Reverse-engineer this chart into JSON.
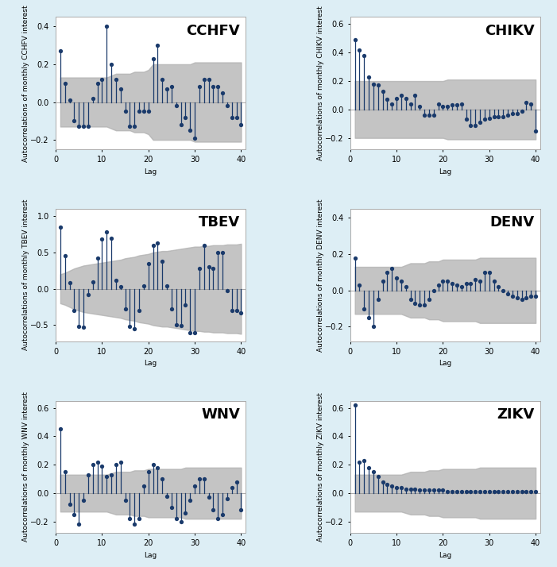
{
  "panels": [
    {
      "title": "CCHFV",
      "ylabel": "Autocorrelations of monthly CCHFV interest",
      "ylim": [
        -0.25,
        0.45
      ],
      "yticks": [
        -0.2,
        0.0,
        0.2,
        0.4
      ],
      "acf": [
        0.27,
        0.1,
        0.01,
        -0.1,
        -0.13,
        -0.13,
        -0.13,
        0.02,
        0.1,
        0.12,
        0.4,
        0.2,
        0.12,
        0.07,
        -0.05,
        -0.13,
        -0.13,
        -0.05,
        -0.05,
        -0.05,
        0.23,
        0.3,
        0.12,
        0.07,
        0.08,
        -0.02,
        -0.12,
        -0.08,
        -0.15,
        -0.19,
        0.08,
        0.12,
        0.12,
        0.08,
        0.08,
        0.05,
        -0.02,
        -0.08,
        -0.08,
        -0.12
      ],
      "ci_upper": [
        0.13,
        0.13,
        0.13,
        0.13,
        0.13,
        0.13,
        0.13,
        0.13,
        0.13,
        0.13,
        0.13,
        0.14,
        0.15,
        0.15,
        0.15,
        0.15,
        0.16,
        0.16,
        0.16,
        0.17,
        0.2,
        0.2,
        0.2,
        0.2,
        0.2,
        0.2,
        0.2,
        0.2,
        0.2,
        0.21,
        0.21,
        0.21,
        0.21,
        0.21,
        0.21,
        0.21,
        0.21,
        0.21,
        0.21,
        0.21
      ],
      "ci_lower": [
        -0.13,
        -0.13,
        -0.13,
        -0.13,
        -0.13,
        -0.13,
        -0.13,
        -0.13,
        -0.13,
        -0.13,
        -0.13,
        -0.14,
        -0.15,
        -0.15,
        -0.15,
        -0.15,
        -0.16,
        -0.16,
        -0.16,
        -0.17,
        -0.2,
        -0.2,
        -0.2,
        -0.2,
        -0.2,
        -0.2,
        -0.2,
        -0.2,
        -0.2,
        -0.21,
        -0.21,
        -0.21,
        -0.21,
        -0.21,
        -0.21,
        -0.21,
        -0.21,
        -0.21,
        -0.21,
        -0.21
      ]
    },
    {
      "title": "CHIKV",
      "ylabel": "Autocorrelations of monthly CHIKV interest",
      "ylim": [
        -0.28,
        0.65
      ],
      "yticks": [
        -0.2,
        0.0,
        0.2,
        0.4,
        0.6
      ],
      "acf": [
        0.49,
        0.42,
        0.38,
        0.23,
        0.18,
        0.17,
        0.13,
        0.07,
        0.04,
        0.08,
        0.1,
        0.08,
        0.04,
        0.1,
        0.02,
        -0.04,
        -0.04,
        -0.04,
        0.04,
        0.02,
        0.02,
        0.03,
        0.03,
        0.04,
        -0.07,
        -0.11,
        -0.11,
        -0.09,
        -0.07,
        -0.06,
        -0.05,
        -0.05,
        -0.05,
        -0.04,
        -0.03,
        -0.03,
        -0.01,
        0.05,
        0.04,
        -0.15
      ],
      "ci_upper": [
        0.2,
        0.2,
        0.2,
        0.2,
        0.2,
        0.2,
        0.2,
        0.2,
        0.2,
        0.2,
        0.2,
        0.2,
        0.2,
        0.2,
        0.2,
        0.2,
        0.2,
        0.2,
        0.2,
        0.2,
        0.21,
        0.21,
        0.21,
        0.21,
        0.21,
        0.21,
        0.21,
        0.21,
        0.21,
        0.21,
        0.21,
        0.21,
        0.21,
        0.21,
        0.21,
        0.21,
        0.21,
        0.21,
        0.21,
        0.21
      ],
      "ci_lower": [
        -0.2,
        -0.2,
        -0.2,
        -0.2,
        -0.2,
        -0.2,
        -0.2,
        -0.2,
        -0.2,
        -0.2,
        -0.2,
        -0.2,
        -0.2,
        -0.2,
        -0.2,
        -0.2,
        -0.2,
        -0.2,
        -0.2,
        -0.2,
        -0.21,
        -0.21,
        -0.21,
        -0.21,
        -0.21,
        -0.21,
        -0.21,
        -0.21,
        -0.21,
        -0.21,
        -0.21,
        -0.21,
        -0.21,
        -0.21,
        -0.21,
        -0.21,
        -0.21,
        -0.21,
        -0.21,
        -0.21
      ]
    },
    {
      "title": "TBEV",
      "ylabel": "Autocorrelations of monthly TBEV interest",
      "ylim": [
        -0.72,
        1.1
      ],
      "yticks": [
        -0.5,
        0.0,
        0.5,
        1.0
      ],
      "acf": [
        0.85,
        0.45,
        0.08,
        -0.3,
        -0.52,
        -0.53,
        -0.08,
        0.09,
        0.42,
        0.68,
        0.78,
        0.7,
        0.12,
        0.03,
        -0.28,
        -0.52,
        -0.55,
        -0.3,
        0.04,
        0.35,
        0.6,
        0.63,
        0.38,
        0.04,
        -0.28,
        -0.5,
        -0.51,
        -0.22,
        -0.6,
        -0.6,
        0.28,
        0.6,
        0.3,
        0.28,
        0.5,
        0.5,
        -0.03,
        -0.3,
        -0.3,
        -0.33
      ],
      "ci_upper": [
        0.2,
        0.22,
        0.25,
        0.28,
        0.3,
        0.32,
        0.33,
        0.34,
        0.35,
        0.36,
        0.37,
        0.38,
        0.39,
        0.4,
        0.42,
        0.43,
        0.44,
        0.46,
        0.47,
        0.48,
        0.5,
        0.51,
        0.52,
        0.52,
        0.53,
        0.54,
        0.55,
        0.56,
        0.57,
        0.58,
        0.58,
        0.59,
        0.59,
        0.6,
        0.6,
        0.6,
        0.61,
        0.61,
        0.61,
        0.62
      ],
      "ci_lower": [
        -0.2,
        -0.22,
        -0.25,
        -0.28,
        -0.3,
        -0.32,
        -0.33,
        -0.34,
        -0.35,
        -0.36,
        -0.37,
        -0.38,
        -0.39,
        -0.4,
        -0.42,
        -0.43,
        -0.44,
        -0.46,
        -0.47,
        -0.48,
        -0.5,
        -0.51,
        -0.52,
        -0.52,
        -0.53,
        -0.54,
        -0.55,
        -0.56,
        -0.57,
        -0.58,
        -0.58,
        -0.59,
        -0.59,
        -0.6,
        -0.6,
        -0.6,
        -0.61,
        -0.61,
        -0.61,
        -0.62
      ]
    },
    {
      "title": "DENV",
      "ylabel": "Autocorrelations of monthly DENV interest",
      "ylim": [
        -0.28,
        0.45
      ],
      "yticks": [
        -0.2,
        0.0,
        0.2,
        0.4
      ],
      "acf": [
        0.18,
        0.03,
        -0.1,
        -0.15,
        -0.2,
        -0.05,
        0.05,
        0.1,
        0.12,
        0.07,
        0.05,
        0.02,
        -0.05,
        -0.07,
        -0.08,
        -0.08,
        -0.05,
        0.0,
        0.03,
        0.05,
        0.05,
        0.04,
        0.03,
        0.02,
        0.04,
        0.04,
        0.06,
        0.05,
        0.1,
        0.1,
        0.05,
        0.02,
        0.0,
        -0.02,
        -0.03,
        -0.04,
        -0.05,
        -0.04,
        -0.03,
        -0.03
      ],
      "ci_upper": [
        0.13,
        0.13,
        0.13,
        0.13,
        0.13,
        0.13,
        0.13,
        0.13,
        0.13,
        0.13,
        0.13,
        0.14,
        0.15,
        0.15,
        0.15,
        0.15,
        0.16,
        0.16,
        0.16,
        0.17,
        0.17,
        0.17,
        0.17,
        0.17,
        0.17,
        0.17,
        0.17,
        0.18,
        0.18,
        0.18,
        0.18,
        0.18,
        0.18,
        0.18,
        0.18,
        0.18,
        0.18,
        0.18,
        0.18,
        0.18
      ],
      "ci_lower": [
        -0.13,
        -0.13,
        -0.13,
        -0.13,
        -0.13,
        -0.13,
        -0.13,
        -0.13,
        -0.13,
        -0.13,
        -0.13,
        -0.14,
        -0.15,
        -0.15,
        -0.15,
        -0.15,
        -0.16,
        -0.16,
        -0.16,
        -0.17,
        -0.17,
        -0.17,
        -0.17,
        -0.17,
        -0.17,
        -0.17,
        -0.17,
        -0.18,
        -0.18,
        -0.18,
        -0.18,
        -0.18,
        -0.18,
        -0.18,
        -0.18,
        -0.18,
        -0.18,
        -0.18,
        -0.18,
        -0.18
      ]
    },
    {
      "title": "WNV",
      "ylabel": "Autocorrelations of monthly WNV interest",
      "ylim": [
        -0.28,
        0.65
      ],
      "yticks": [
        -0.2,
        0.0,
        0.2,
        0.4,
        0.6
      ],
      "acf": [
        0.45,
        0.15,
        -0.08,
        -0.15,
        -0.22,
        -0.05,
        0.13,
        0.2,
        0.22,
        0.19,
        0.12,
        0.13,
        0.2,
        0.22,
        -0.05,
        -0.18,
        -0.22,
        -0.18,
        0.05,
        0.15,
        0.2,
        0.18,
        0.1,
        -0.02,
        -0.1,
        -0.18,
        -0.2,
        -0.14,
        -0.05,
        0.05,
        0.1,
        0.1,
        -0.03,
        -0.12,
        -0.18,
        -0.15,
        -0.04,
        0.04,
        0.08,
        -0.12
      ],
      "ci_upper": [
        0.13,
        0.13,
        0.13,
        0.13,
        0.13,
        0.13,
        0.13,
        0.13,
        0.13,
        0.13,
        0.13,
        0.14,
        0.15,
        0.15,
        0.15,
        0.15,
        0.16,
        0.16,
        0.16,
        0.17,
        0.17,
        0.17,
        0.17,
        0.17,
        0.17,
        0.17,
        0.17,
        0.18,
        0.18,
        0.18,
        0.18,
        0.18,
        0.18,
        0.18,
        0.18,
        0.18,
        0.18,
        0.18,
        0.18,
        0.18
      ],
      "ci_lower": [
        -0.13,
        -0.13,
        -0.13,
        -0.13,
        -0.13,
        -0.13,
        -0.13,
        -0.13,
        -0.13,
        -0.13,
        -0.13,
        -0.14,
        -0.15,
        -0.15,
        -0.15,
        -0.15,
        -0.16,
        -0.16,
        -0.16,
        -0.17,
        -0.17,
        -0.17,
        -0.17,
        -0.17,
        -0.17,
        -0.17,
        -0.17,
        -0.18,
        -0.18,
        -0.18,
        -0.18,
        -0.18,
        -0.18,
        -0.18,
        -0.18,
        -0.18,
        -0.18,
        -0.18,
        -0.18,
        -0.18
      ]
    },
    {
      "title": "ZIKV",
      "ylabel": "Autocorrelations of monthly ZIKV interest",
      "ylim": [
        -0.28,
        0.65
      ],
      "yticks": [
        -0.2,
        0.0,
        0.2,
        0.4,
        0.6
      ],
      "acf": [
        0.62,
        0.22,
        0.23,
        0.18,
        0.15,
        0.12,
        0.08,
        0.06,
        0.05,
        0.04,
        0.04,
        0.03,
        0.03,
        0.03,
        0.02,
        0.02,
        0.02,
        0.02,
        0.02,
        0.02,
        0.01,
        0.01,
        0.01,
        0.01,
        0.01,
        0.01,
        0.01,
        0.01,
        0.01,
        0.01,
        0.01,
        0.01,
        0.01,
        0.01,
        0.01,
        0.01,
        0.01,
        0.01,
        0.01,
        0.01
      ],
      "ci_upper": [
        0.13,
        0.13,
        0.13,
        0.13,
        0.13,
        0.13,
        0.13,
        0.13,
        0.13,
        0.13,
        0.13,
        0.14,
        0.15,
        0.15,
        0.15,
        0.15,
        0.16,
        0.16,
        0.16,
        0.17,
        0.17,
        0.17,
        0.17,
        0.17,
        0.17,
        0.17,
        0.17,
        0.18,
        0.18,
        0.18,
        0.18,
        0.18,
        0.18,
        0.18,
        0.18,
        0.18,
        0.18,
        0.18,
        0.18,
        0.18
      ],
      "ci_lower": [
        -0.13,
        -0.13,
        -0.13,
        -0.13,
        -0.13,
        -0.13,
        -0.13,
        -0.13,
        -0.13,
        -0.13,
        -0.13,
        -0.14,
        -0.15,
        -0.15,
        -0.15,
        -0.15,
        -0.16,
        -0.16,
        -0.16,
        -0.17,
        -0.17,
        -0.17,
        -0.17,
        -0.17,
        -0.17,
        -0.17,
        -0.17,
        -0.18,
        -0.18,
        -0.18,
        -0.18,
        -0.18,
        -0.18,
        -0.18,
        -0.18,
        -0.18,
        -0.18,
        -0.18,
        -0.18,
        -0.18
      ]
    }
  ],
  "bg_color": "#ddeef5",
  "plot_bg_color": "#ffffff",
  "ci_color": "#b0b0b0",
  "stem_color": "#1a3a6b",
  "marker_color": "#1a3a6b",
  "xlabel": "Lag",
  "title_fontsize": 13,
  "label_fontsize": 6.5,
  "tick_fontsize": 7
}
